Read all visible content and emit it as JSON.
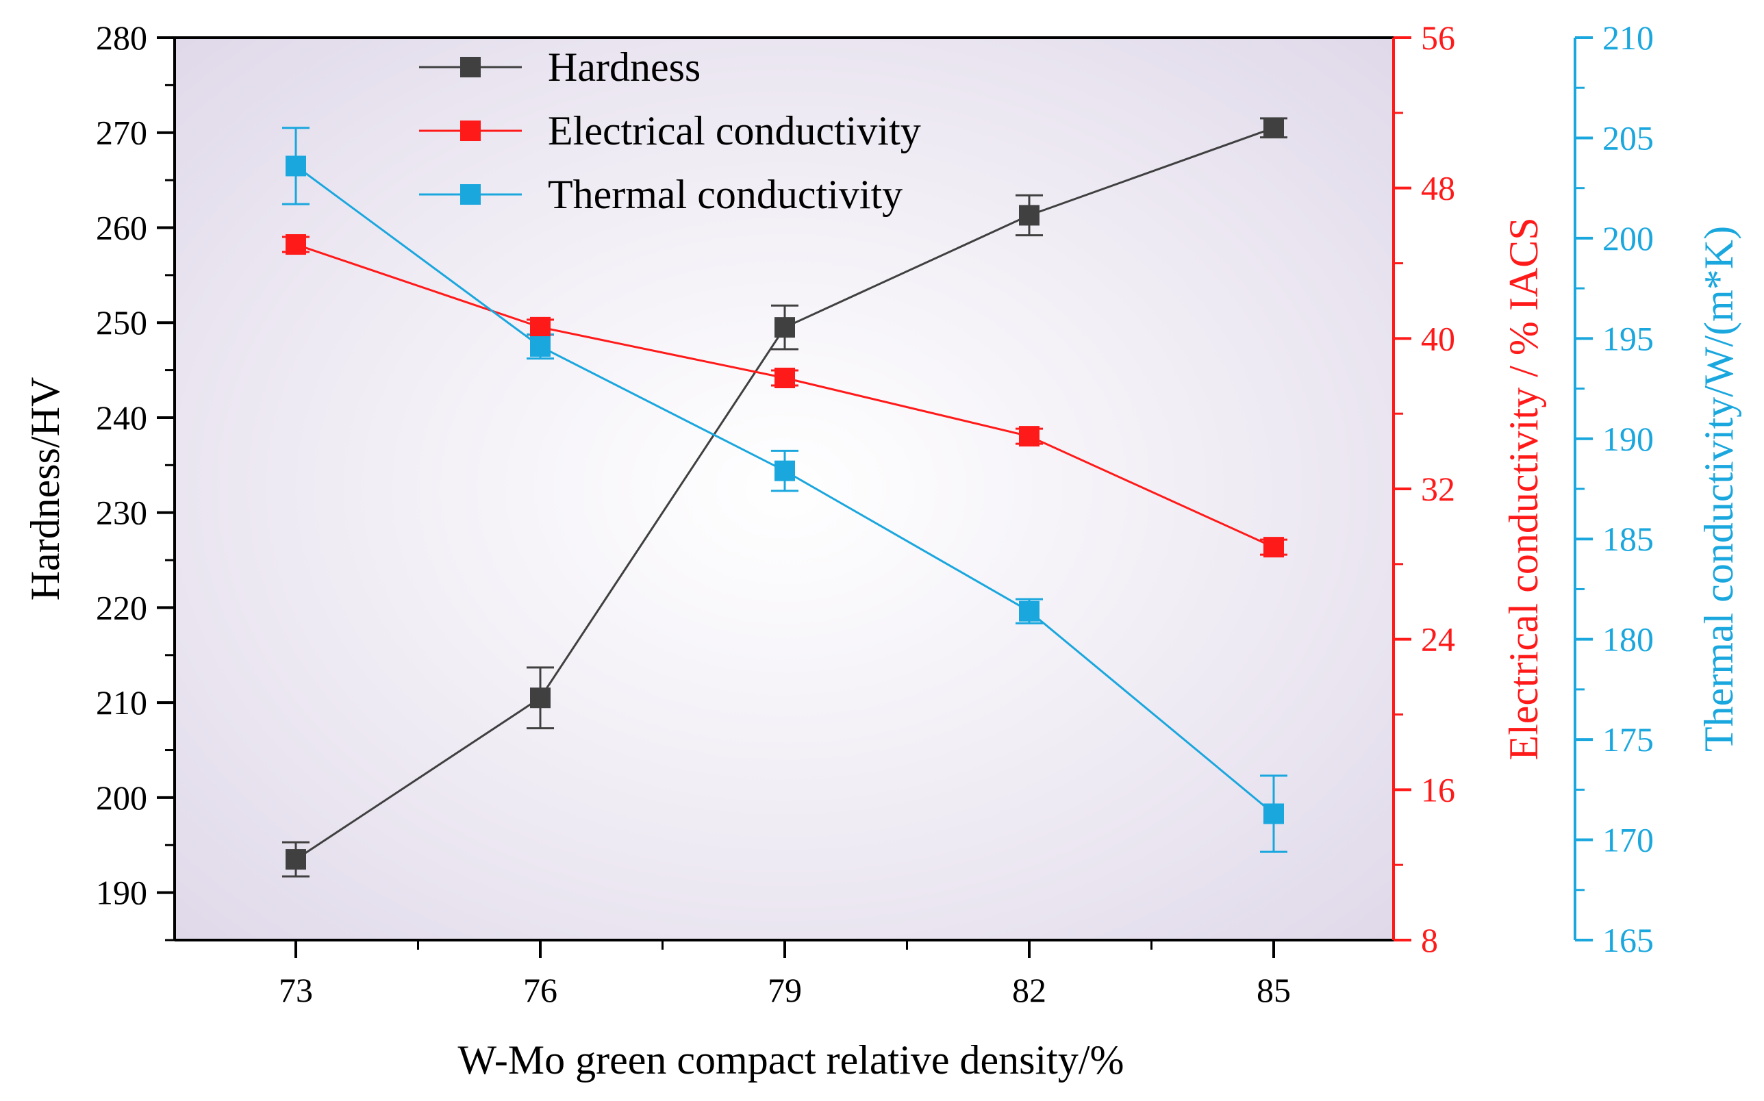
{
  "chart_data": {
    "type": "line",
    "x": [
      73,
      76,
      79,
      82,
      85
    ],
    "xlabel": "W-Mo green compact relative density/%",
    "legend_position": "top-center",
    "axes": {
      "left": {
        "label": "Hardness/HV",
        "range": [
          185,
          280
        ],
        "ticks": [
          190,
          200,
          210,
          220,
          230,
          240,
          250,
          260,
          270,
          280
        ],
        "color": "#000000"
      },
      "right1": {
        "label": "Electrical conductivity / % IACS",
        "range": [
          8,
          56
        ],
        "ticks": [
          8,
          16,
          24,
          32,
          40,
          48,
          56
        ],
        "color": "#ff1a1a"
      },
      "right2": {
        "label": "Thermal conductivity/W/(m*K)",
        "range": [
          165,
          210
        ],
        "ticks": [
          165,
          170,
          175,
          180,
          185,
          190,
          195,
          200,
          205,
          210
        ],
        "color": "#1aa7de"
      }
    },
    "series": [
      {
        "name": "Hardness",
        "axis": "left",
        "color": "#404040",
        "values": [
          193.5,
          210.5,
          249.5,
          261.3,
          270.5
        ],
        "errors": [
          1.8,
          3.2,
          2.3,
          2.1,
          1.0
        ]
      },
      {
        "name": "Electrical conductivity",
        "axis": "right1",
        "color": "#ff1a1a",
        "values": [
          45.0,
          40.6,
          37.9,
          34.8,
          28.9
        ],
        "errors": [
          0.4,
          0.4,
          0.4,
          0.4,
          0.4
        ]
      },
      {
        "name": "Thermal conductivity",
        "axis": "right2",
        "color": "#1aa7de",
        "values": [
          203.6,
          194.6,
          188.4,
          181.4,
          171.3
        ],
        "errors": [
          1.9,
          0.6,
          1.0,
          0.6,
          1.9
        ]
      }
    ]
  }
}
